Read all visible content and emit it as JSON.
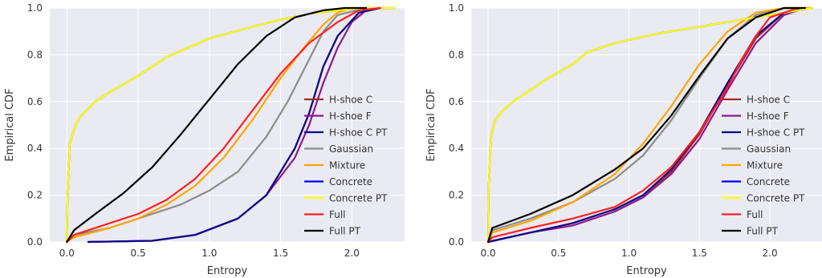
{
  "chart_data": [
    {
      "type": "line",
      "title": "",
      "xlabel": "Entropy",
      "ylabel": "Empirical CDF",
      "xlim": [
        -0.12,
        2.37
      ],
      "ylim": [
        0,
        1
      ],
      "xticks": [
        "0.0",
        "0.5",
        "1.0",
        "1.5",
        "2.0"
      ],
      "yticks": [
        "0.0",
        "0.2",
        "0.4",
        "0.6",
        "0.8",
        "1.0"
      ],
      "grid": true,
      "background": "#eaeaf2",
      "legend": "center-right",
      "series": [
        {
          "name": "H-shoe C",
          "color": "#a52a2a",
          "x": [
            0.15,
            0.6,
            0.9,
            1.2,
            1.4,
            1.6,
            1.7,
            1.8,
            1.9,
            2.05,
            2.2
          ],
          "y": [
            0,
            0.005,
            0.03,
            0.1,
            0.2,
            0.4,
            0.55,
            0.75,
            0.88,
            0.98,
            1.0
          ]
        },
        {
          "name": "H-shoe F",
          "color": "#8b1a8b",
          "x": [
            0.15,
            0.6,
            0.9,
            1.2,
            1.4,
            1.6,
            1.7,
            1.8,
            1.9,
            2.0,
            2.1,
            2.2
          ],
          "y": [
            0,
            0.005,
            0.03,
            0.1,
            0.2,
            0.36,
            0.5,
            0.68,
            0.83,
            0.94,
            0.99,
            1.0
          ]
        },
        {
          "name": "H-shoe C PT",
          "color": "#0a0a8b",
          "x": [
            0.15,
            0.6,
            0.9,
            1.2,
            1.4,
            1.6,
            1.7,
            1.8,
            1.9,
            2.05,
            2.2
          ],
          "y": [
            0,
            0.005,
            0.03,
            0.1,
            0.2,
            0.4,
            0.55,
            0.75,
            0.88,
            0.98,
            1.0
          ]
        },
        {
          "name": "Gaussian",
          "color": "#8c8c8c",
          "x": [
            0,
            0.05,
            0.3,
            0.5,
            0.8,
            1.0,
            1.2,
            1.4,
            1.55,
            1.7,
            1.8,
            1.9,
            2.1
          ],
          "y": [
            0,
            0.03,
            0.06,
            0.1,
            0.16,
            0.22,
            0.3,
            0.45,
            0.6,
            0.78,
            0.9,
            0.97,
            1.0
          ]
        },
        {
          "name": "Mixture",
          "color": "#ffa500",
          "x": [
            0,
            0.05,
            0.3,
            0.5,
            0.7,
            0.9,
            1.1,
            1.3,
            1.5,
            1.65,
            1.8,
            1.9,
            2.0,
            2.2
          ],
          "y": [
            0,
            0.02,
            0.06,
            0.1,
            0.16,
            0.24,
            0.36,
            0.52,
            0.7,
            0.82,
            0.93,
            0.98,
            1.0,
            1.0
          ]
        },
        {
          "name": "Concrete",
          "color": "#0000ff",
          "x": [
            0,
            0.005,
            0.02,
            0.06,
            0.1,
            0.2,
            0.3,
            0.5,
            0.7,
            1.0,
            1.3,
            1.5,
            1.7,
            1.9,
            2.1,
            2.3
          ],
          "y": [
            0,
            0.2,
            0.42,
            0.5,
            0.54,
            0.6,
            0.64,
            0.71,
            0.79,
            0.87,
            0.92,
            0.95,
            0.975,
            0.99,
            1.0,
            1.0
          ]
        },
        {
          "name": "Concrete PT",
          "color": "#ffff00",
          "x": [
            0,
            0.005,
            0.02,
            0.06,
            0.1,
            0.2,
            0.3,
            0.5,
            0.7,
            1.0,
            1.3,
            1.5,
            1.7,
            1.9,
            2.1,
            2.3
          ],
          "y": [
            0,
            0.2,
            0.42,
            0.5,
            0.54,
            0.6,
            0.64,
            0.71,
            0.79,
            0.87,
            0.92,
            0.95,
            0.975,
            0.99,
            1.0,
            1.0
          ]
        },
        {
          "name": "Full",
          "color": "#ff2020",
          "x": [
            0,
            0.05,
            0.3,
            0.5,
            0.7,
            0.9,
            1.1,
            1.3,
            1.5,
            1.7,
            1.9,
            2.05,
            2.2
          ],
          "y": [
            0,
            0.03,
            0.08,
            0.12,
            0.18,
            0.27,
            0.4,
            0.56,
            0.72,
            0.85,
            0.94,
            0.99,
            1.0
          ]
        },
        {
          "name": "Full PT",
          "color": "#000000",
          "x": [
            0,
            0.05,
            0.2,
            0.4,
            0.6,
            0.8,
            1.0,
            1.2,
            1.4,
            1.6,
            1.8,
            1.95,
            2.1
          ],
          "y": [
            0,
            0.05,
            0.12,
            0.21,
            0.32,
            0.46,
            0.61,
            0.76,
            0.88,
            0.96,
            0.99,
            1.0,
            1.0
          ]
        }
      ]
    },
    {
      "type": "line",
      "title": "",
      "xlabel": "Entropy",
      "ylabel": "Empirical CDF",
      "xlim": [
        -0.12,
        2.37
      ],
      "ylim": [
        0,
        1
      ],
      "xticks": [
        "0.0",
        "0.5",
        "1.0",
        "1.5",
        "2.0"
      ],
      "yticks": [
        "0.0",
        "0.2",
        "0.4",
        "0.6",
        "0.8",
        "1.0"
      ],
      "grid": true,
      "background": "#eaeaf2",
      "legend": "center-right",
      "series": [
        {
          "name": "H-shoe C",
          "color": "#a52a2a",
          "x": [
            0,
            0.3,
            0.6,
            0.9,
            1.1,
            1.3,
            1.5,
            1.7,
            1.9,
            2.1,
            2.25
          ],
          "y": [
            0,
            0.04,
            0.08,
            0.14,
            0.2,
            0.3,
            0.46,
            0.67,
            0.87,
            0.98,
            1.0
          ]
        },
        {
          "name": "H-shoe F",
          "color": "#8b1a8b",
          "x": [
            0,
            0.3,
            0.6,
            0.9,
            1.1,
            1.3,
            1.5,
            1.7,
            1.9,
            2.1,
            2.25
          ],
          "y": [
            0,
            0.04,
            0.07,
            0.13,
            0.19,
            0.29,
            0.44,
            0.65,
            0.85,
            0.97,
            1.0
          ]
        },
        {
          "name": "H-shoe C PT",
          "color": "#0a0a8b",
          "x": [
            0,
            0.3,
            0.6,
            0.9,
            1.1,
            1.3,
            1.5,
            1.7,
            1.9,
            2.1,
            2.25
          ],
          "y": [
            0,
            0.04,
            0.08,
            0.14,
            0.2,
            0.31,
            0.47,
            0.68,
            0.88,
            0.98,
            1.0
          ]
        },
        {
          "name": "Gaussian",
          "color": "#8c8c8c",
          "x": [
            0,
            0.03,
            0.3,
            0.6,
            0.9,
            1.1,
            1.3,
            1.5,
            1.7,
            1.9,
            2.1,
            2.3
          ],
          "y": [
            0,
            0.05,
            0.1,
            0.17,
            0.27,
            0.37,
            0.52,
            0.7,
            0.87,
            0.97,
            1.0,
            1.0
          ]
        },
        {
          "name": "Mixture",
          "color": "#ffa500",
          "x": [
            0,
            0.03,
            0.3,
            0.6,
            0.9,
            1.1,
            1.3,
            1.5,
            1.7,
            1.9,
            2.1,
            2.3
          ],
          "y": [
            0,
            0.04,
            0.09,
            0.17,
            0.29,
            0.42,
            0.58,
            0.76,
            0.9,
            0.98,
            1.0,
            1.0
          ]
        },
        {
          "name": "Concrete",
          "color": "#0000ff",
          "x": [
            0,
            0.005,
            0.02,
            0.05,
            0.1,
            0.2,
            0.4,
            0.6,
            0.7,
            0.9,
            1.2,
            1.5,
            1.8,
            2.0,
            2.2,
            2.3
          ],
          "y": [
            0,
            0.25,
            0.45,
            0.52,
            0.56,
            0.61,
            0.69,
            0.76,
            0.81,
            0.85,
            0.89,
            0.92,
            0.95,
            0.97,
            0.99,
            1.0
          ]
        },
        {
          "name": "Concrete PT",
          "color": "#ffff00",
          "x": [
            0,
            0.005,
            0.02,
            0.05,
            0.1,
            0.2,
            0.4,
            0.6,
            0.7,
            0.9,
            1.2,
            1.5,
            1.8,
            2.0,
            2.2,
            2.3
          ],
          "y": [
            0,
            0.25,
            0.45,
            0.52,
            0.56,
            0.61,
            0.69,
            0.76,
            0.81,
            0.85,
            0.89,
            0.92,
            0.95,
            0.97,
            0.99,
            1.0
          ]
        },
        {
          "name": "Full",
          "color": "#ff2020",
          "x": [
            0,
            0.03,
            0.3,
            0.6,
            0.9,
            1.1,
            1.3,
            1.5,
            1.7,
            1.8,
            1.9,
            2.0,
            2.2
          ],
          "y": [
            0,
            0.02,
            0.06,
            0.1,
            0.15,
            0.22,
            0.32,
            0.47,
            0.66,
            0.78,
            0.88,
            0.96,
            1.0
          ]
        },
        {
          "name": "Full PT",
          "color": "#000000",
          "x": [
            0,
            0.03,
            0.3,
            0.6,
            0.9,
            1.1,
            1.3,
            1.5,
            1.7,
            1.9,
            2.1,
            2.25
          ],
          "y": [
            0,
            0.06,
            0.12,
            0.2,
            0.31,
            0.4,
            0.54,
            0.71,
            0.87,
            0.96,
            1.0,
            1.0
          ]
        }
      ]
    }
  ]
}
